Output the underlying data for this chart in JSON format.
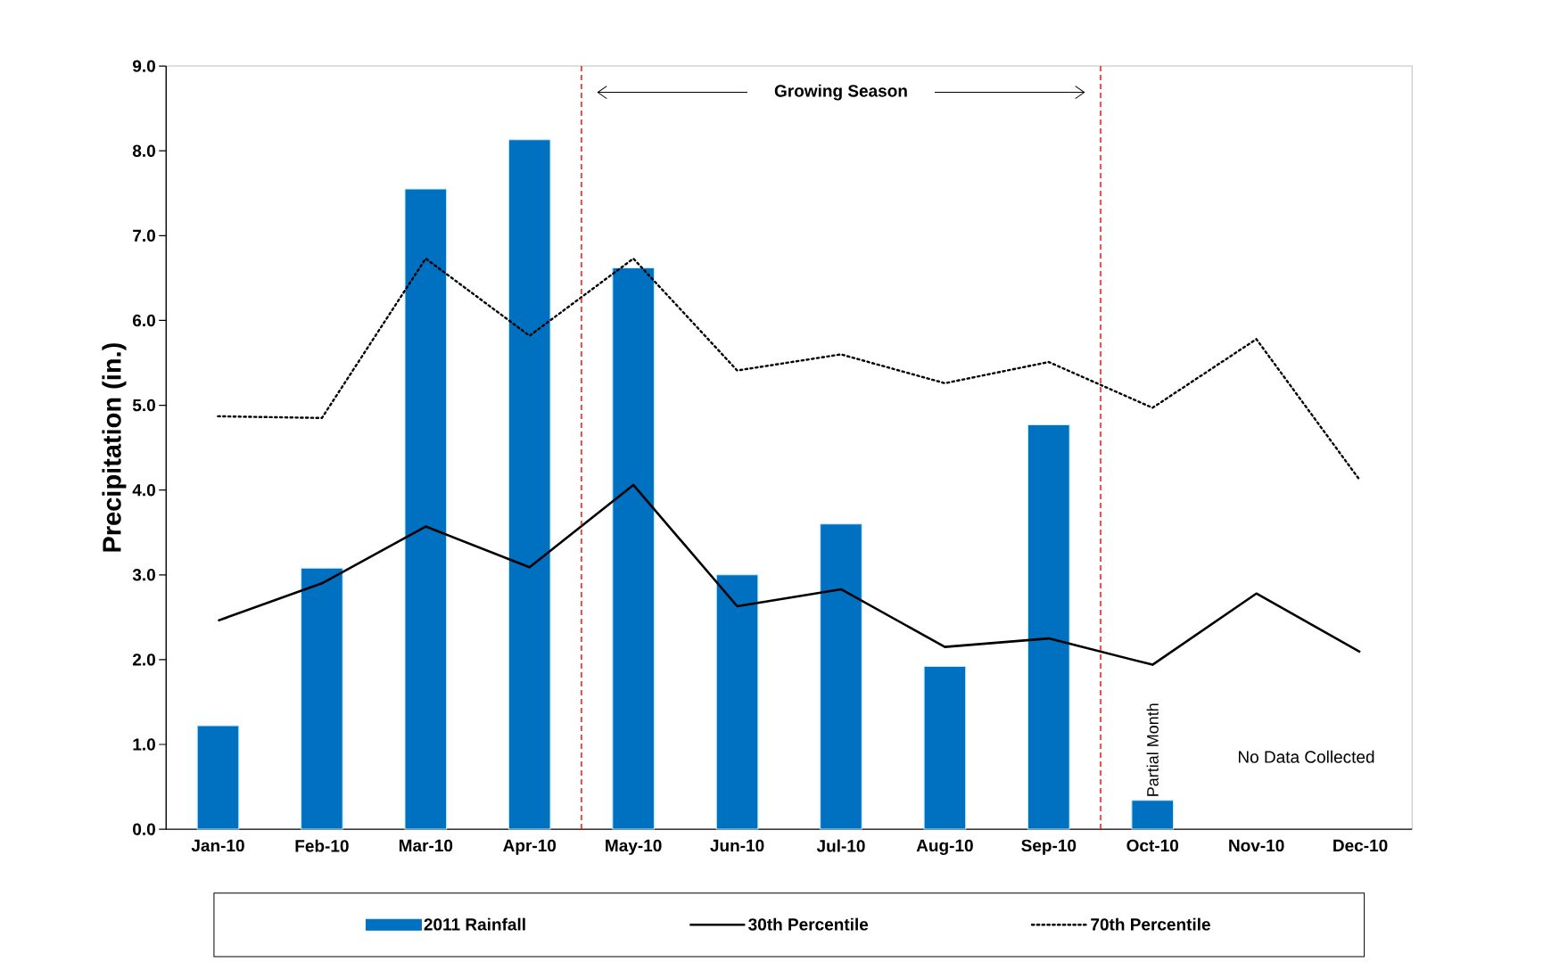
{
  "chart_data": {
    "type": "bar",
    "ylabel": "Precipitation (in.)",
    "categories": [
      "Jan-10",
      "Feb-10",
      "Mar-10",
      "Apr-10",
      "May-10",
      "Jun-10",
      "Jul-10",
      "Aug-10",
      "Sep-10",
      "Oct-10",
      "Nov-10",
      "Dec-10"
    ],
    "series": [
      {
        "name": "2011 Rainfall",
        "color": "#0070c0",
        "values": [
          1.22,
          3.08,
          7.55,
          8.13,
          6.62,
          3.0,
          3.6,
          1.92,
          4.77,
          0.34,
          null,
          null
        ]
      },
      {
        "name": "30th Percentile",
        "type": "line",
        "color": "#000000",
        "line_style": "solid",
        "values": [
          2.46,
          2.9,
          3.57,
          3.09,
          4.06,
          2.63,
          2.83,
          2.15,
          2.25,
          1.94,
          2.78,
          2.09
        ]
      },
      {
        "name": "70th Percentile",
        "type": "line",
        "color": "#000000",
        "line_style": "dotted",
        "values": [
          4.87,
          4.85,
          6.73,
          5.82,
          6.73,
          5.41,
          5.6,
          5.26,
          5.51,
          4.97,
          5.78,
          4.11
        ]
      }
    ],
    "ylim": [
      0,
      9
    ],
    "yticks": [
      {
        "value": 0,
        "label": "0.0"
      },
      {
        "value": 1,
        "label": "1.0"
      },
      {
        "value": 2,
        "label": "2.0"
      },
      {
        "value": 3,
        "label": "3.0"
      },
      {
        "value": 4,
        "label": "4.0"
      },
      {
        "value": 5,
        "label": "5.0"
      },
      {
        "value": 6,
        "label": "6.0"
      },
      {
        "value": 7,
        "label": "7.0"
      },
      {
        "value": 8,
        "label": "8.0"
      },
      {
        "value": 9,
        "label": "9.0"
      }
    ],
    "legend": "bottom",
    "grid": false,
    "annotations": [
      "Growing Season",
      {
        "text": "Partial Month",
        "x": "Oct-10",
        "y": 0.34
      },
      "No Data Collected"
    ]
  }
}
